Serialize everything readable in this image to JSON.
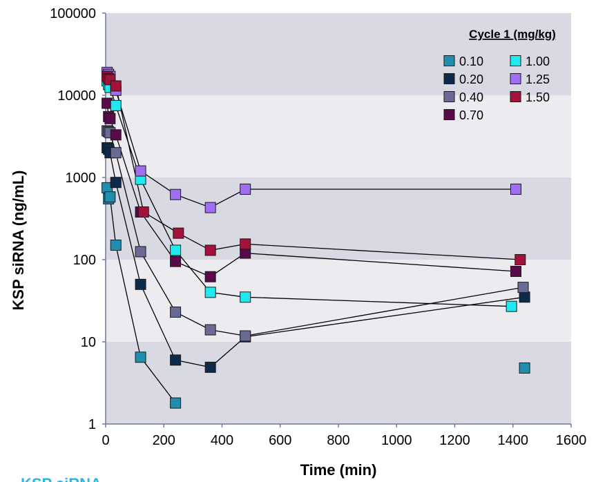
{
  "chart_data": {
    "type": "line",
    "xlabel": "Time (min)",
    "ylabel": "KSP siRNA (ng/mL)",
    "x_scale": "linear",
    "y_scale": "log",
    "xlim": [
      0,
      1600
    ],
    "ylim": [
      1,
      100000
    ],
    "x_ticks": [
      0,
      200,
      400,
      600,
      800,
      1000,
      1200,
      1400,
      1600
    ],
    "x_tick_labels": [
      "0",
      "200",
      "400",
      "600",
      "800",
      "1000",
      "1200",
      "1400",
      "1600"
    ],
    "y_ticks": [
      1,
      10,
      100,
      1000,
      10000,
      100000
    ],
    "y_tick_labels": [
      "1",
      "10",
      "100",
      "1000",
      "10000",
      "100000"
    ],
    "background_bands": [
      "#d9d9e3",
      "#ebebf0"
    ],
    "legend": {
      "title": "Cycle 1 (mg/kg)",
      "placement": "top-right",
      "columns": 2
    },
    "marker": "square",
    "line_color": "#000000",
    "series": [
      {
        "name": "0.10",
        "color": "#1f8fb0",
        "x": [
          5,
          10,
          15,
          35,
          120,
          240
        ],
        "y": [
          750,
          550,
          580,
          150,
          6.5,
          1.8
        ],
        "isolated": [
          {
            "x": 1440,
            "y": 4.8
          }
        ]
      },
      {
        "name": "0.20",
        "color": "#0d2a4a",
        "x": [
          5,
          10,
          15,
          35,
          120,
          240,
          360,
          480,
          1440
        ],
        "y": [
          2300,
          2200,
          2000,
          870,
          50,
          6,
          4.9,
          11.5,
          35
        ]
      },
      {
        "name": "0.40",
        "color": "#6a6a96",
        "x": [
          5,
          10,
          15,
          35,
          120,
          240,
          360,
          480,
          1435
        ],
        "y": [
          3700,
          3600,
          3500,
          2000,
          125,
          23,
          14,
          11.8,
          46
        ]
      },
      {
        "name": "0.70",
        "color": "#5a0a4a",
        "x": [
          5,
          10,
          15,
          35,
          120,
          240,
          360,
          480,
          1410
        ],
        "y": [
          8000,
          5500,
          5200,
          3300,
          380,
          95,
          62,
          120,
          72
        ]
      },
      {
        "name": "1.00",
        "color": "#22e8f0",
        "x": [
          5,
          10,
          15,
          35,
          120,
          240,
          360,
          480,
          1395
        ],
        "y": [
          15000,
          13500,
          12500,
          7500,
          950,
          130,
          40,
          35,
          27
        ]
      },
      {
        "name": "1.25",
        "color": "#a06ef2",
        "x": [
          5,
          10,
          15,
          35,
          120,
          240,
          360,
          480,
          1410
        ],
        "y": [
          19000,
          18000,
          17000,
          11500,
          1200,
          620,
          430,
          720,
          720
        ]
      },
      {
        "name": "1.50",
        "color": "#a3123a",
        "x": [
          5,
          10,
          15,
          35,
          130,
          250,
          360,
          480,
          1425
        ],
        "y": [
          17000,
          16000,
          15500,
          13000,
          380,
          210,
          130,
          155,
          100
        ]
      }
    ]
  },
  "footer": {
    "text": "KSP siRNA",
    "color": "#29b6e6"
  }
}
